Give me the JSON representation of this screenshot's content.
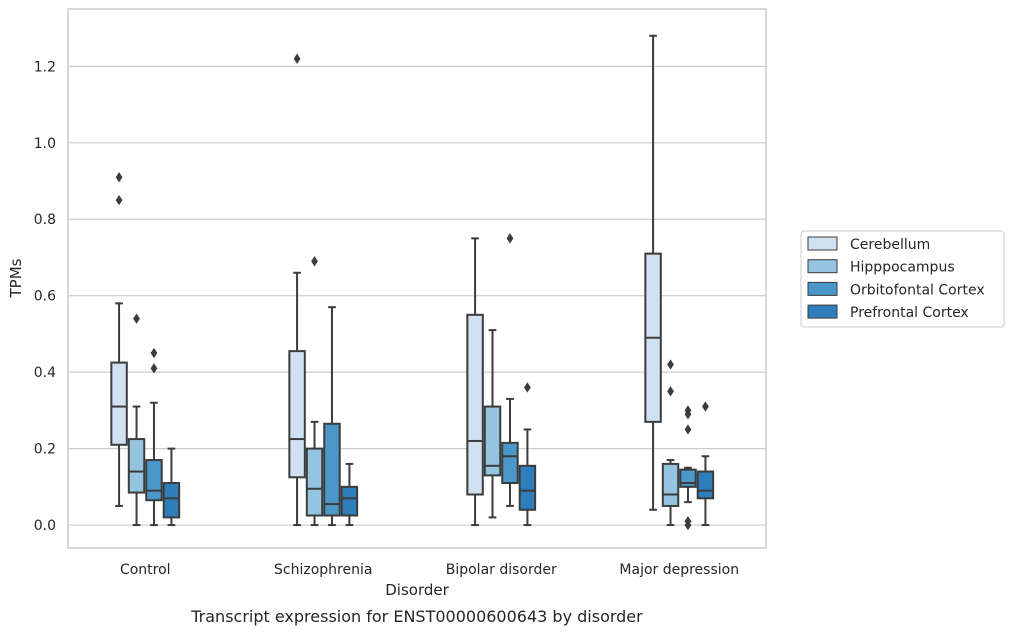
{
  "chart_data": {
    "type": "box",
    "caption": "Transcript expression for ENST00000600643 by disorder",
    "xlabel": "Disorder",
    "ylabel": "TPMs",
    "ylim": [
      -0.06,
      1.35
    ],
    "yticks": [
      "0.0",
      "0.2",
      "0.4",
      "0.6",
      "0.8",
      "1.0",
      "1.2"
    ],
    "grid": true,
    "legend_position": "right",
    "categories": [
      "Control",
      "Schizophrenia",
      "Bipolar disorder",
      "Major depression"
    ],
    "series": [
      {
        "name": "Cerebellum",
        "color": "#d0e1f2",
        "boxes": [
          {
            "whisker_low": 0.05,
            "q1": 0.21,
            "median": 0.31,
            "q3": 0.425,
            "whisker_high": 0.58,
            "outliers": [
              0.85,
              0.91
            ]
          },
          {
            "whisker_low": 0.0,
            "q1": 0.125,
            "median": 0.225,
            "q3": 0.455,
            "whisker_high": 0.66,
            "outliers": [
              1.22
            ]
          },
          {
            "whisker_low": 0.0,
            "q1": 0.08,
            "median": 0.22,
            "q3": 0.55,
            "whisker_high": 0.75,
            "outliers": []
          },
          {
            "whisker_low": 0.04,
            "q1": 0.27,
            "median": 0.49,
            "q3": 0.71,
            "whisker_high": 1.28,
            "outliers": []
          }
        ]
      },
      {
        "name": "Hipppocampus",
        "color": "#94c4df",
        "boxes": [
          {
            "whisker_low": 0.0,
            "q1": 0.085,
            "median": 0.14,
            "q3": 0.225,
            "whisker_high": 0.31,
            "outliers": [
              0.54
            ]
          },
          {
            "whisker_low": 0.0,
            "q1": 0.025,
            "median": 0.095,
            "q3": 0.2,
            "whisker_high": 0.27,
            "outliers": [
              0.69
            ]
          },
          {
            "whisker_low": 0.02,
            "q1": 0.13,
            "median": 0.155,
            "q3": 0.31,
            "whisker_high": 0.51,
            "outliers": []
          },
          {
            "whisker_low": 0.0,
            "q1": 0.05,
            "median": 0.08,
            "q3": 0.16,
            "whisker_high": 0.17,
            "outliers": [
              0.35,
              0.42
            ]
          }
        ]
      },
      {
        "name": "Orbitofontal Cortex",
        "color": "#4a98c9",
        "boxes": [
          {
            "whisker_low": 0.0,
            "q1": 0.065,
            "median": 0.09,
            "q3": 0.17,
            "whisker_high": 0.32,
            "outliers": [
              0.41,
              0.45
            ]
          },
          {
            "whisker_low": 0.0,
            "q1": 0.025,
            "median": 0.055,
            "q3": 0.265,
            "whisker_high": 0.57,
            "outliers": []
          },
          {
            "whisker_low": 0.05,
            "q1": 0.11,
            "median": 0.18,
            "q3": 0.215,
            "whisker_high": 0.33,
            "outliers": [
              0.75
            ]
          },
          {
            "whisker_low": 0.06,
            "q1": 0.1,
            "median": 0.11,
            "q3": 0.145,
            "whisker_high": 0.15,
            "outliers": [
              0.0,
              0.01,
              0.25,
              0.29,
              0.3
            ]
          }
        ]
      },
      {
        "name": "Prefrontal Cortex",
        "color": "#2e7ebc",
        "boxes": [
          {
            "whisker_low": 0.0,
            "q1": 0.02,
            "median": 0.07,
            "q3": 0.11,
            "whisker_high": 0.2,
            "outliers": []
          },
          {
            "whisker_low": 0.0,
            "q1": 0.025,
            "median": 0.07,
            "q3": 0.1,
            "whisker_high": 0.16,
            "outliers": []
          },
          {
            "whisker_low": 0.0,
            "q1": 0.04,
            "median": 0.09,
            "q3": 0.155,
            "whisker_high": 0.25,
            "outliers": [
              0.36
            ]
          },
          {
            "whisker_low": 0.0,
            "q1": 0.07,
            "median": 0.09,
            "q3": 0.14,
            "whisker_high": 0.18,
            "outliers": [
              0.31
            ]
          }
        ]
      }
    ]
  }
}
